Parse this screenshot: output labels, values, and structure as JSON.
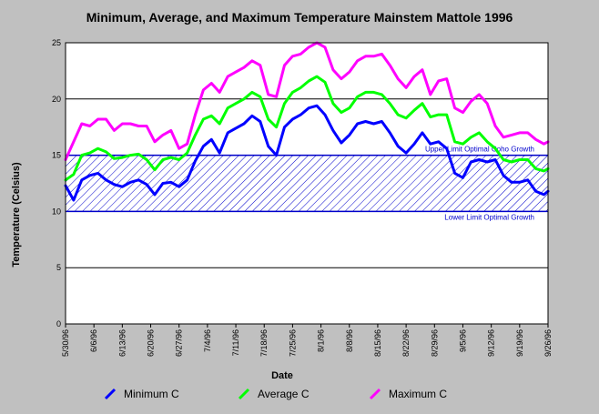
{
  "chart_data": {
    "type": "line",
    "title": "Minimum, Average, and Maximum Temperature Mainstem Mattole 1996",
    "xlabel": "Date",
    "ylabel": "Temperature (Celsius)",
    "ylim": [
      0,
      25
    ],
    "yticks": [
      0,
      5,
      10,
      15,
      20,
      25
    ],
    "xlim": [
      "5/30/96",
      "9/26/96"
    ],
    "xtick_labels": [
      "5/30/96",
      "6/6/96",
      "6/13/96",
      "6/20/96",
      "6/27/96",
      "7/4/96",
      "7/11/96",
      "7/18/96",
      "7/25/96",
      "8/1/96",
      "8/8/96",
      "8/15/96",
      "8/22/96",
      "8/29/96",
      "9/5/96",
      "9/12/96",
      "9/19/96",
      "9/26/96"
    ],
    "grid": "horizontal",
    "legend_position": "bottom",
    "band": {
      "lower": 10,
      "upper": 15,
      "lower_label": "Lower Limit Optimal Growth",
      "upper_label": "Upper Limit Optimal Coho Growth",
      "color": "#0000cc"
    },
    "x": [
      "5/30/96",
      "6/1/96",
      "6/3/96",
      "6/5/96",
      "6/7/96",
      "6/9/96",
      "6/11/96",
      "6/13/96",
      "6/15/96",
      "6/17/96",
      "6/19/96",
      "6/21/96",
      "6/23/96",
      "6/25/96",
      "6/27/96",
      "6/29/96",
      "7/1/96",
      "7/3/96",
      "7/5/96",
      "7/7/96",
      "7/9/96",
      "7/11/96",
      "7/13/96",
      "7/15/96",
      "7/17/96",
      "7/19/96",
      "7/21/96",
      "7/23/96",
      "7/25/96",
      "7/27/96",
      "7/29/96",
      "7/31/96",
      "8/2/96",
      "8/4/96",
      "8/6/96",
      "8/8/96",
      "8/10/96",
      "8/12/96",
      "8/14/96",
      "8/16/96",
      "8/18/96",
      "8/20/96",
      "8/22/96",
      "8/24/96",
      "8/26/96",
      "8/28/96",
      "8/30/96",
      "9/1/96",
      "9/3/96",
      "9/5/96",
      "9/7/96",
      "9/9/96",
      "9/11/96",
      "9/13/96",
      "9/15/96",
      "9/17/96",
      "9/19/96",
      "9/21/96",
      "9/23/96",
      "9/25/96",
      "9/26/96"
    ],
    "series": [
      {
        "name": "Minimum C",
        "color": "#0000ff",
        "values": [
          12.3,
          11.0,
          12.8,
          13.2,
          13.4,
          12.8,
          12.4,
          12.2,
          12.6,
          12.8,
          12.4,
          11.5,
          12.5,
          12.6,
          12.2,
          12.8,
          14.5,
          15.8,
          16.4,
          15.2,
          17.0,
          17.4,
          17.8,
          18.5,
          18.0,
          15.8,
          15.0,
          17.5,
          18.2,
          18.6,
          19.2,
          19.4,
          18.6,
          17.2,
          16.1,
          16.8,
          17.8,
          18.0,
          17.8,
          18.0,
          17.0,
          15.8,
          15.2,
          16.0,
          17.0,
          16.0,
          16.2,
          15.6,
          13.4,
          13.0,
          14.4,
          14.6,
          14.4,
          14.6,
          13.2,
          12.6,
          12.6,
          12.8,
          11.8,
          11.5,
          11.8
        ]
      },
      {
        "name": "Average C",
        "color": "#00ff00",
        "values": [
          12.8,
          13.3,
          15.0,
          15.2,
          15.6,
          15.3,
          14.7,
          14.8,
          15.0,
          15.1,
          14.6,
          13.7,
          14.6,
          14.8,
          14.6,
          15.2,
          16.8,
          18.2,
          18.5,
          17.8,
          19.2,
          19.6,
          20.0,
          20.6,
          20.2,
          18.2,
          17.5,
          19.6,
          20.6,
          21.0,
          21.6,
          22.0,
          21.5,
          19.6,
          18.8,
          19.2,
          20.2,
          20.6,
          20.6,
          20.4,
          19.6,
          18.6,
          18.3,
          19.0,
          19.6,
          18.4,
          18.6,
          18.6,
          16.2,
          16.0,
          16.6,
          17.0,
          16.2,
          15.6,
          14.6,
          14.4,
          14.6,
          14.6,
          13.8,
          13.6,
          13.8
        ]
      },
      {
        "name": "Maximum C",
        "color": "#ff00ff",
        "values": [
          14.6,
          16.2,
          17.8,
          17.6,
          18.2,
          18.2,
          17.2,
          17.8,
          17.8,
          17.6,
          17.6,
          16.2,
          16.8,
          17.2,
          15.6,
          16.0,
          18.6,
          20.8,
          21.4,
          20.6,
          22.0,
          22.4,
          22.8,
          23.4,
          23.0,
          20.4,
          20.2,
          23.0,
          23.8,
          24.0,
          24.6,
          25.0,
          24.6,
          22.6,
          21.8,
          22.4,
          23.4,
          23.8,
          23.8,
          24.0,
          23.0,
          21.8,
          21.0,
          22.0,
          22.6,
          20.4,
          21.6,
          21.8,
          19.2,
          18.8,
          19.8,
          20.4,
          19.6,
          17.6,
          16.6,
          16.8,
          17.0,
          17.0,
          16.4,
          16.0,
          16.2
        ]
      }
    ]
  }
}
